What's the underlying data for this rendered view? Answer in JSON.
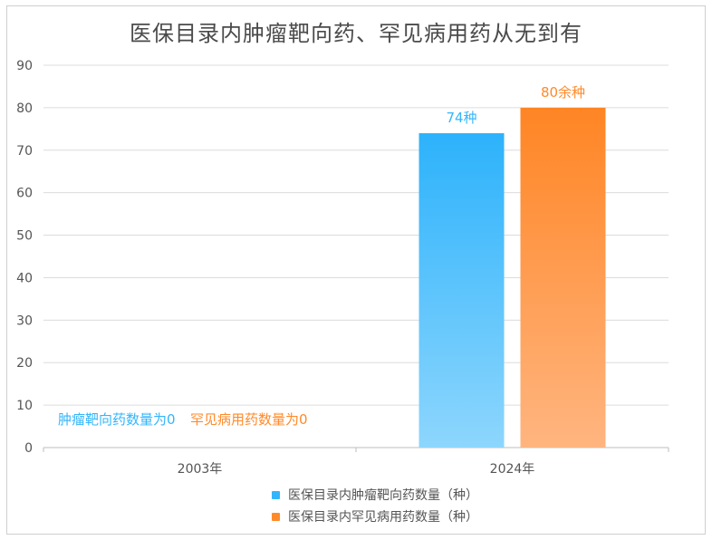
{
  "chart_data": {
    "type": "bar",
    "title": "医保目录内肿瘤靶向药、罕见病用药从无到有",
    "categories": [
      "2003年",
      "2024年"
    ],
    "ylim": [
      0,
      90
    ],
    "yticks": [
      0,
      10,
      20,
      30,
      40,
      50,
      60,
      70,
      80,
      90
    ],
    "grid": true,
    "legend_position": "bottom",
    "series": [
      {
        "name": "医保目录内肿瘤靶向药数量（种）",
        "color": "#33b5fb",
        "values": [
          0,
          74
        ],
        "labels": [
          "肿瘤靶向药数量为0",
          "74种"
        ]
      },
      {
        "name": "医保目录内罕见病用药数量（种）",
        "color": "#ff8a2a",
        "values": [
          0,
          80
        ],
        "labels": [
          "罕见病用药数量为0",
          "80余种"
        ]
      }
    ]
  }
}
